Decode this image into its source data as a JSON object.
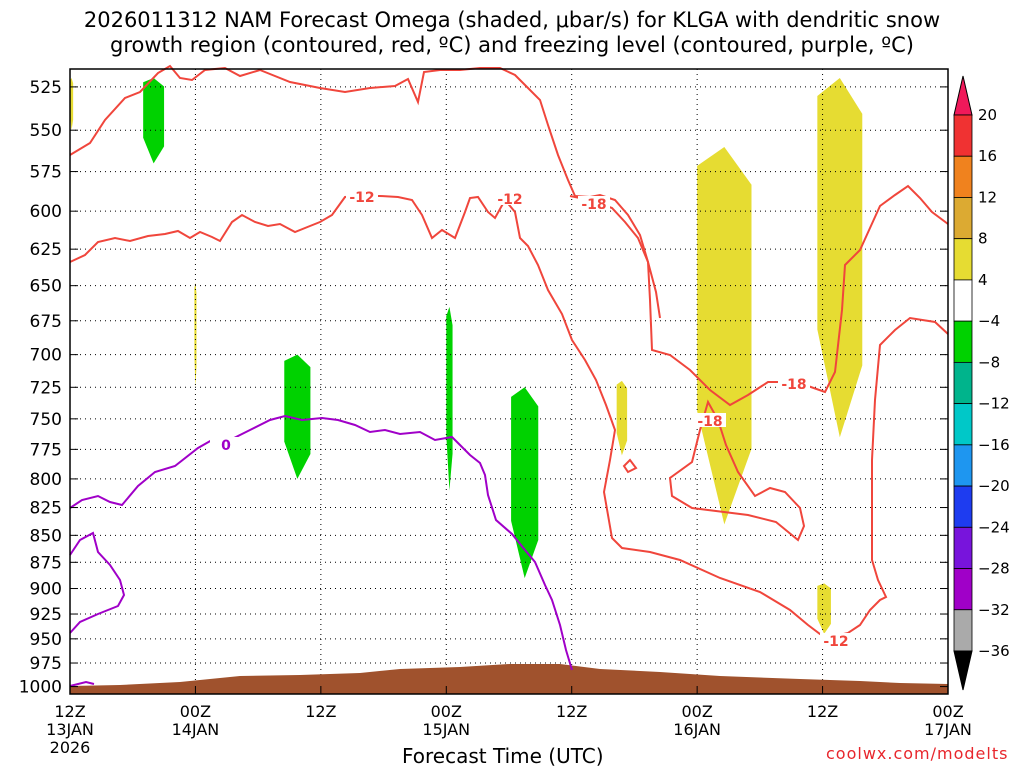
{
  "title": {
    "line1": "2026011312 NAM Forecast Omega (shaded, μbar/s) for KLGA with dendritic snow",
    "line2": "growth region (contoured, red, ºC) and freezing level (contoured, purple, ºC)"
  },
  "xlabel": "Forecast Time (UTC)",
  "credit": "coolwx.com/modelts",
  "chart_data": {
    "type": "heatmap",
    "title": "2026011312 NAM Forecast Omega (shaded, μbar/s) for KLGA with dendritic snow growth region (contoured, red, ºC) and freezing level (contoured, purple, ºC)",
    "xlabel": "Forecast Time (UTC)",
    "ylabel": "",
    "x_ticks": [
      {
        "hour": 0,
        "line1": "12Z",
        "line2": "13JAN",
        "line3": "2026"
      },
      {
        "hour": 12,
        "line1": "00Z",
        "line2": "14JAN",
        "line3": ""
      },
      {
        "hour": 24,
        "line1": "12Z",
        "line2": "",
        "line3": ""
      },
      {
        "hour": 36,
        "line1": "00Z",
        "line2": "15JAN",
        "line3": ""
      },
      {
        "hour": 48,
        "line1": "12Z",
        "line2": "",
        "line3": ""
      },
      {
        "hour": 60,
        "line1": "00Z",
        "line2": "16JAN",
        "line3": ""
      },
      {
        "hour": 72,
        "line1": "12Z",
        "line2": "",
        "line3": ""
      },
      {
        "hour": 84,
        "line1": "00Z",
        "line2": "17JAN",
        "line3": ""
      }
    ],
    "xlim": [
      0,
      84
    ],
    "y_ticks": [
      525,
      550,
      575,
      600,
      625,
      650,
      675,
      700,
      725,
      750,
      775,
      800,
      825,
      850,
      875,
      900,
      925,
      950,
      975,
      1000
    ],
    "ylim": [
      1008,
      515
    ],
    "y_scale": "log-pressure",
    "grid": true,
    "colorbar": {
      "labels": [
        "20",
        "16",
        "12",
        "8",
        "4",
        "−4",
        "−8",
        "−12",
        "−16",
        "−20",
        "−24",
        "−28",
        "−32",
        "−36"
      ],
      "colors": [
        "#f0195a",
        "#f03232",
        "#f0821e",
        "#dcaa32",
        "#e6dc32",
        "#ffffff",
        "#00d200",
        "#00b48c",
        "#00c8c8",
        "#1e96f0",
        "#1e3cf0",
        "#7814dc",
        "#a000c8",
        "#aaaaaa",
        "#000000"
      ]
    },
    "omega_regions": [
      {
        "level": 4,
        "color": "#e6dc32",
        "hour_range": [
          0,
          0.3
        ],
        "pressure_range": [
          520,
          550
        ]
      },
      {
        "level": 4,
        "color": "#e6dc32",
        "hour_range": [
          11.9,
          12.1
        ],
        "pressure_range": [
          648,
          725
        ]
      },
      {
        "level": -4,
        "color": "#00d200",
        "hour_range": [
          7,
          9
        ],
        "pressure_range": [
          520,
          570
        ]
      },
      {
        "level": -4,
        "color": "#00d200",
        "hour_range": [
          20.5,
          23
        ],
        "pressure_range": [
          700,
          800
        ]
      },
      {
        "level": -4,
        "color": "#00d200",
        "hour_range": [
          36,
          36.6
        ],
        "pressure_range": [
          665,
          810
        ]
      },
      {
        "level": -4,
        "color": "#00d200",
        "hour_range": [
          42.2,
          44.8
        ],
        "pressure_range": [
          725,
          890
        ]
      },
      {
        "level": 4,
        "color": "#e6dc32",
        "hour_range": [
          52.3,
          53.3
        ],
        "pressure_range": [
          720,
          780
        ]
      },
      {
        "level": 4,
        "color": "#e6dc32",
        "hour_range": [
          60,
          65.2
        ],
        "pressure_range": [
          560,
          840
        ]
      },
      {
        "level": 4,
        "color": "#e6dc32",
        "hour_range": [
          71.5,
          75.8
        ],
        "pressure_range": [
          520,
          765
        ]
      },
      {
        "level": 4,
        "color": "#e6dc32",
        "hour_range": [
          71.5,
          72.8
        ],
        "pressure_range": [
          895,
          945
        ]
      }
    ],
    "contours": [
      {
        "label": "-12",
        "color": "#f0463c",
        "note": "upper red line near 520-600 hPa"
      },
      {
        "label": "-12",
        "color": "#f0463c",
        "note": "red line near 600-640 hPa"
      },
      {
        "label": "-18",
        "color": "#f0463c",
        "note": "red closed contour 16JAN"
      },
      {
        "label": "-12",
        "color": "#f0463c",
        "note": "lower red contour 15JAN-17JAN"
      },
      {
        "label": "0",
        "color": "#a000c8",
        "note": "freezing level"
      }
    ],
    "contour_labels": [
      "-12",
      "-12",
      "-18",
      "-18",
      "-18",
      "-12",
      "0"
    ]
  }
}
